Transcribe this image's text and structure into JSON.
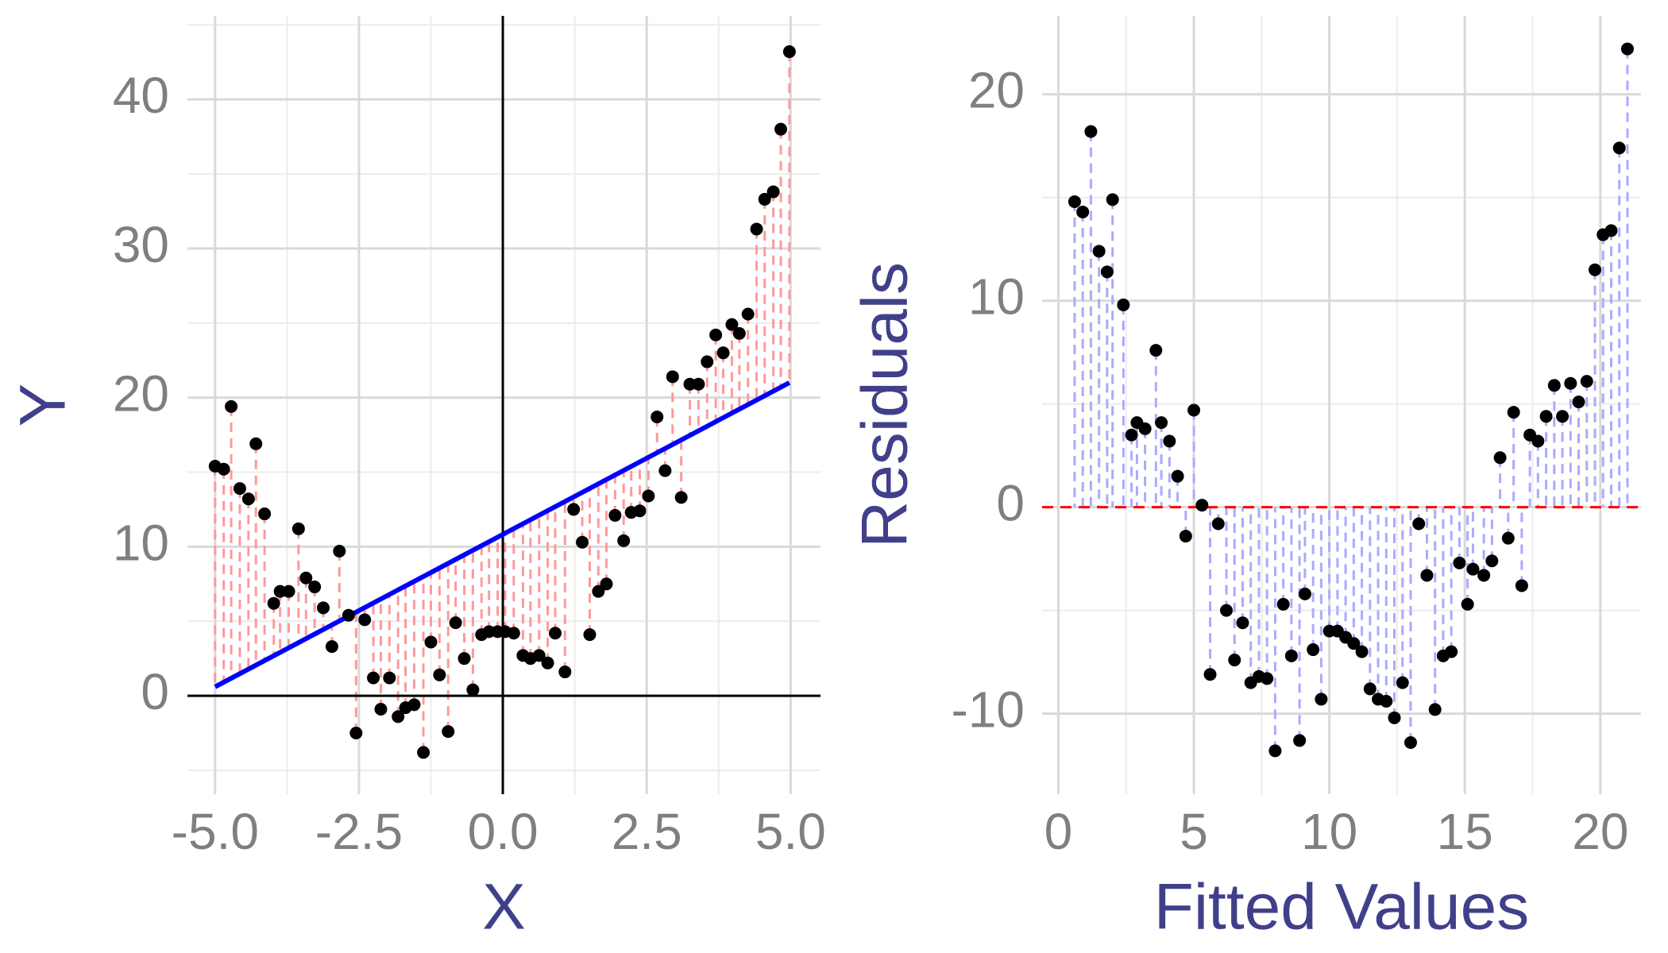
{
  "chart_data": [
    {
      "type": "scatter",
      "x_label": "X",
      "y_label": "Y",
      "xlim": [
        -5.48,
        5.52
      ],
      "ylim": [
        -6.6,
        45.6
      ],
      "xticks": [
        {
          "value": -5,
          "label": "-5.0"
        },
        {
          "value": -2.5,
          "label": "-2.5"
        },
        {
          "value": 0,
          "label": "0.0"
        },
        {
          "value": 2.5,
          "label": "2.5"
        },
        {
          "value": 5,
          "label": "5.0"
        }
      ],
      "yticks": [
        0,
        10,
        20,
        30,
        40
      ],
      "grid": true,
      "reference_lines": {
        "x": 0,
        "y": 0,
        "color": "#000000",
        "dashed": false
      },
      "fit_line": {
        "x": [
          -5,
          4.98
        ],
        "values": [
          0.6,
          21.0
        ],
        "color": "#0000ff"
      },
      "segments": {
        "to": "fit_line",
        "color": "#ff9999"
      },
      "series": [
        {
          "color": "#000000",
          "x": [
            -5,
            -4.85,
            -4.72,
            -4.57,
            -4.42,
            -4.29,
            -4.14,
            -3.98,
            -3.87,
            -3.72,
            -3.55,
            -3.42,
            -3.27,
            -3.12,
            -2.97,
            -2.84,
            -2.68,
            -2.55,
            -2.4,
            -2.25,
            -2.12,
            -1.97,
            -1.82,
            -1.69,
            -1.54,
            -1.38,
            -1.25,
            -1.1,
            -0.95,
            -0.82,
            -0.67,
            -0.52,
            -0.37,
            -0.24,
            -0.09,
            0.04,
            0.19,
            0.35,
            0.48,
            0.63,
            0.78,
            0.91,
            1.08,
            1.23,
            1.38,
            1.51,
            1.66,
            1.8,
            1.95,
            2.1,
            2.23,
            2.38,
            2.53,
            2.68,
            2.82,
            2.95,
            3.1,
            3.25,
            3.4,
            3.55,
            3.7,
            3.83,
            3.98,
            4.11,
            4.26,
            4.41,
            4.55,
            4.7,
            4.83,
            4.98
          ],
          "values": [
            15.4,
            15.2,
            19.4,
            13.9,
            13.2,
            16.9,
            12.2,
            6.2,
            7.0,
            7.0,
            11.2,
            7.9,
            7.3,
            5.9,
            3.3,
            9.7,
            5.4,
            -2.5,
            5.1,
            1.2,
            -0.9,
            1.2,
            -1.4,
            -0.8,
            -0.6,
            -3.8,
            3.6,
            1.4,
            -2.4,
            4.9,
            2.5,
            0.4,
            4.1,
            4.3,
            4.3,
            4.3,
            4.2,
            2.7,
            2.5,
            2.7,
            2.2,
            4.2,
            1.6,
            12.5,
            10.3,
            4.1,
            7.0,
            7.5,
            12.1,
            10.4,
            12.3,
            12.4,
            13.4,
            18.7,
            15.1,
            21.4,
            13.3,
            20.9,
            20.9,
            22.4,
            24.2,
            23.0,
            24.9,
            24.3,
            25.6,
            31.3,
            33.3,
            33.8,
            38.0,
            43.2
          ]
        }
      ]
    },
    {
      "type": "scatter",
      "x_label": "Fitted Values",
      "y_label": "Residuals",
      "xlim": [
        -0.6,
        21.5
      ],
      "ylim": [
        -13.9,
        23.8
      ],
      "xticks": [
        0,
        5,
        10,
        15,
        20
      ],
      "yticks": [
        -10,
        0,
        10,
        20
      ],
      "grid": true,
      "reference_lines": {
        "y": 0,
        "color": "#ff0000",
        "dashed": true
      },
      "segments": {
        "to": "reference_lines",
        "color": "#aaaaff"
      },
      "series": [
        {
          "color": "#000000",
          "x": [
            0.6,
            0.9,
            1.2,
            1.5,
            1.8,
            2.0,
            2.4,
            2.7,
            2.9,
            3.2,
            3.6,
            3.8,
            4.1,
            4.4,
            4.7,
            5.0,
            5.3,
            5.6,
            5.9,
            6.2,
            6.5,
            6.8,
            7.1,
            7.4,
            7.7,
            8.0,
            8.3,
            8.6,
            8.9,
            9.1,
            9.4,
            9.7,
            10.0,
            10.3,
            10.6,
            10.9,
            11.2,
            11.5,
            11.8,
            12.1,
            12.4,
            12.7,
            13.0,
            13.3,
            13.6,
            13.9,
            14.2,
            14.5,
            14.8,
            15.1,
            15.3,
            15.7,
            16.0,
            16.3,
            16.6,
            16.8,
            17.1,
            17.4,
            17.7,
            18.0,
            18.3,
            18.6,
            18.9,
            19.2,
            19.5,
            19.8,
            20.1,
            20.4,
            20.7,
            21.0
          ],
          "values": [
            14.8,
            14.3,
            18.2,
            12.4,
            11.4,
            14.9,
            9.8,
            3.5,
            4.1,
            3.8,
            7.6,
            4.1,
            3.2,
            1.5,
            -1.4,
            4.7,
            0.1,
            -8.1,
            -0.8,
            -5.0,
            -7.4,
            -5.6,
            -8.5,
            -8.2,
            -8.3,
            -11.8,
            -4.7,
            -7.2,
            -11.3,
            -4.2,
            -6.9,
            -9.3,
            -6.0,
            -6.0,
            -6.3,
            -6.6,
            -7.0,
            -8.8,
            -9.3,
            -9.4,
            -10.2,
            -8.5,
            -11.4,
            -0.8,
            -3.3,
            -9.8,
            -7.2,
            -7.0,
            -2.7,
            -4.7,
            -3.0,
            -3.3,
            -2.6,
            2.4,
            -1.5,
            4.6,
            -3.8,
            3.5,
            3.2,
            4.4,
            5.9,
            4.4,
            6.0,
            5.1,
            6.1,
            11.5,
            13.2,
            13.4,
            17.4,
            22.2
          ]
        }
      ]
    }
  ]
}
